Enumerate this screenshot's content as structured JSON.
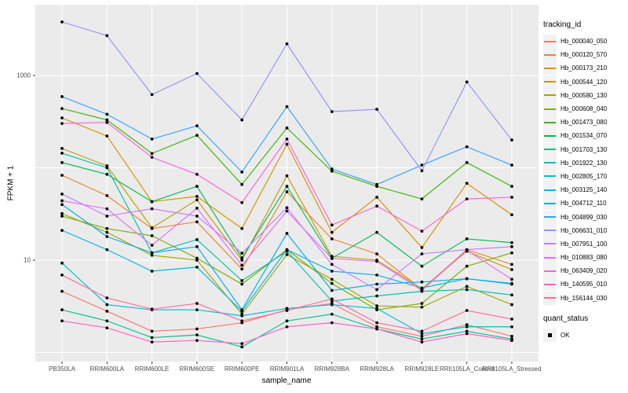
{
  "chart_data": {
    "type": "line",
    "title": "",
    "xlabel": "sample_name",
    "ylabel": "FPKM + 1",
    "y_scale": "log10",
    "ylim": [
      0.8,
      5800
    ],
    "y_ticks": [
      10,
      1000
    ],
    "y_gridlines": [
      1,
      10,
      100,
      1000
    ],
    "grid": "on",
    "panel_bg": "#EBEBEB",
    "gridline_color": "#FFFFFF",
    "tick_label_color": "#4D4D4D",
    "point_color": "#000000",
    "legend_title": "tracking_id",
    "legend_position": "right",
    "categories": [
      "PB350LA",
      "RRIM600LA",
      "RRIM600LE",
      "RRIM600SE",
      "RRIM600PE",
      "RRIM901LA",
      "RRIM928BA",
      "RRIM928LA",
      "RRIM928LE",
      "RRII105LA_Control",
      "RRII105LA_Stressed"
    ],
    "series": [
      {
        "name": "Hb_000040_050",
        "color": "#F8766D",
        "values": [
          4.6,
          2.8,
          1.7,
          1.8,
          2.1,
          2.9,
          3.4,
          1.9,
          1.5,
          2.0,
          1.5
        ]
      },
      {
        "name": "Hb_000120_570",
        "color": "#EA8331",
        "values": [
          83,
          50,
          22,
          26,
          8,
          55,
          17,
          11.7,
          4.8,
          13,
          9
        ]
      },
      {
        "name": "Hb_000173_210",
        "color": "#D89000",
        "values": [
          347,
          221,
          43,
          49,
          22,
          180,
          20,
          48,
          13.7,
          68,
          31
        ]
      },
      {
        "name": "Hb_000544_120",
        "color": "#C09B00",
        "values": [
          162,
          105,
          22.4,
          45,
          10,
          82,
          11,
          10,
          4.9,
          12.5,
          7.9
        ]
      },
      {
        "name": "Hb_000580_130",
        "color": "#A3A500",
        "values": [
          32,
          20,
          11.3,
          10,
          2.6,
          11.5,
          6.2,
          3.2,
          3.1,
          5.2,
          3.3
        ]
      },
      {
        "name": "Hb_000608_040",
        "color": "#7CAE00",
        "values": [
          30,
          22,
          18.4,
          10.5,
          5.5,
          13,
          5.6,
          2.9,
          3.4,
          8.6,
          12
        ]
      },
      {
        "name": "Hb_001473_080",
        "color": "#39B600",
        "values": [
          438,
          330,
          143,
          225,
          66,
          270,
          92,
          63,
          46,
          114,
          63
        ]
      },
      {
        "name": "Hb_001534_070",
        "color": "#00BB4E",
        "values": [
          114,
          85,
          43,
          63,
          10.6,
          63,
          10.5,
          20,
          8.6,
          17,
          15.5
        ]
      },
      {
        "name": "Hb_001703_130",
        "color": "#00C087",
        "values": [
          2.9,
          2.2,
          1.45,
          1.55,
          1.15,
          2.2,
          2.6,
          1.8,
          1.4,
          1.7,
          1.4
        ]
      },
      {
        "name": "Hb_001922_130",
        "color": "#00C0B2",
        "values": [
          144,
          100,
          12,
          16.7,
          6,
          12.5,
          3.6,
          4.1,
          4.6,
          4.8,
          4.2
        ]
      },
      {
        "name": "Hb_002805_170",
        "color": "#00BFD3",
        "values": [
          9.3,
          3.3,
          2.9,
          2.9,
          2.5,
          3.0,
          3.3,
          3.0,
          1.6,
          1.9,
          1.9
        ]
      },
      {
        "name": "Hb_003125_140",
        "color": "#00B8E7",
        "values": [
          21,
          13,
          7.6,
          8.4,
          2.8,
          13,
          7.6,
          6.9,
          5.0,
          6.3,
          5.5
        ]
      },
      {
        "name": "Hb_004712_110",
        "color": "#00ACF4",
        "values": [
          40,
          18,
          12,
          14,
          2.9,
          19.5,
          4.7,
          5.5,
          5.8,
          6.3,
          5.6
        ]
      },
      {
        "name": "Hb_004899_030",
        "color": "#35A2FF",
        "values": [
          590,
          380,
          205,
          285,
          90,
          460,
          97,
          66,
          107,
          169,
          107
        ]
      },
      {
        "name": "Hb_006631_010",
        "color": "#9590FF",
        "values": [
          3800,
          2700,
          620,
          1050,
          330,
          2200,
          406,
          430,
          93,
          850,
          200
        ]
      },
      {
        "name": "Hb_007951_100",
        "color": "#C77CFF",
        "values": [
          52,
          30,
          36,
          30,
          11.9,
          37,
          9,
          4.8,
          11.7,
          13,
          14
        ]
      },
      {
        "name": "Hb_010883_080",
        "color": "#E76BF3",
        "values": [
          44,
          36,
          14.5,
          36.5,
          8.8,
          34,
          10.4,
          9.7,
          4.7,
          12.8,
          6.2
        ]
      },
      {
        "name": "Hb_063409_020",
        "color": "#FA62DB",
        "values": [
          302,
          310,
          130,
          85,
          42,
          205,
          24,
          38.5,
          20.6,
          46,
          48
        ]
      },
      {
        "name": "Hb_140595_010",
        "color": "#FF61C9",
        "values": [
          2.2,
          1.85,
          1.3,
          1.35,
          1.25,
          1.9,
          2.1,
          1.8,
          1.3,
          1.6,
          1.35
        ]
      },
      {
        "name": "Hb_156144_030",
        "color": "#FF6A98",
        "values": [
          6.9,
          3.9,
          2.95,
          3.4,
          2.2,
          2.85,
          3.8,
          2.1,
          1.7,
          2.85,
          2.3
        ]
      }
    ],
    "point_legend": {
      "title": "quant_status",
      "items": [
        {
          "label": "OK",
          "icon": "black-square-point-icon"
        }
      ]
    }
  }
}
